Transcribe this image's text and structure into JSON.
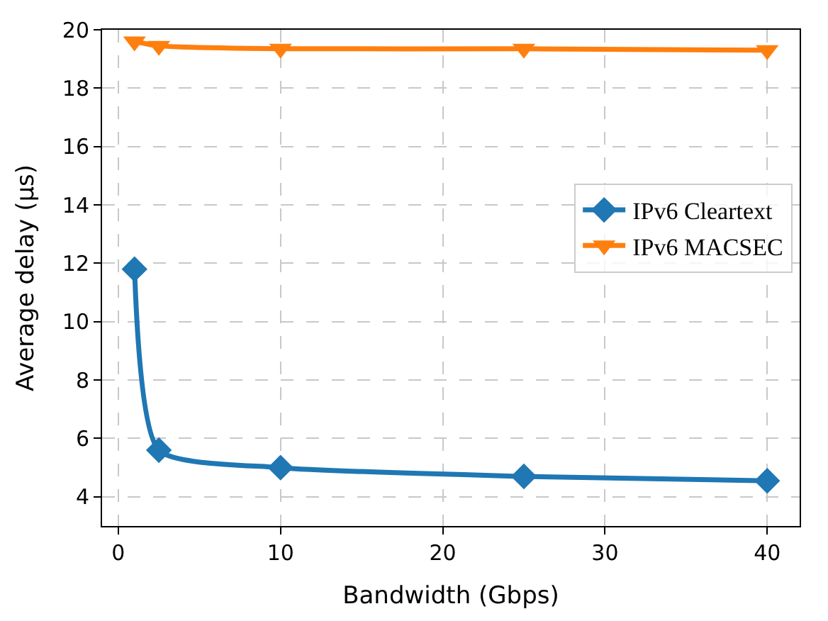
{
  "chart_data": {
    "type": "line",
    "xlabel": "Bandwidth (Gbps)",
    "ylabel": "Average delay (μs)",
    "x": [
      1,
      2.5,
      10,
      25,
      40
    ],
    "series": [
      {
        "name": "IPv6 Cleartext",
        "color": "#1f77b4",
        "marker": "diamond",
        "values": [
          11.8,
          5.6,
          5.0,
          4.7,
          4.55
        ]
      },
      {
        "name": "IPv6 MACSEC",
        "color": "#ff7f0e",
        "marker": "triangle",
        "values": [
          19.6,
          19.45,
          19.35,
          19.35,
          19.3
        ]
      }
    ],
    "xlim": [
      -1,
      42
    ],
    "xticks": [
      0,
      10,
      20,
      30,
      40
    ],
    "ylim": [
      3.0,
      20
    ],
    "yticks": [
      4,
      6,
      8,
      10,
      12,
      14,
      16,
      18,
      20
    ],
    "grid": true,
    "line_style": "solid",
    "legend": "right"
  }
}
